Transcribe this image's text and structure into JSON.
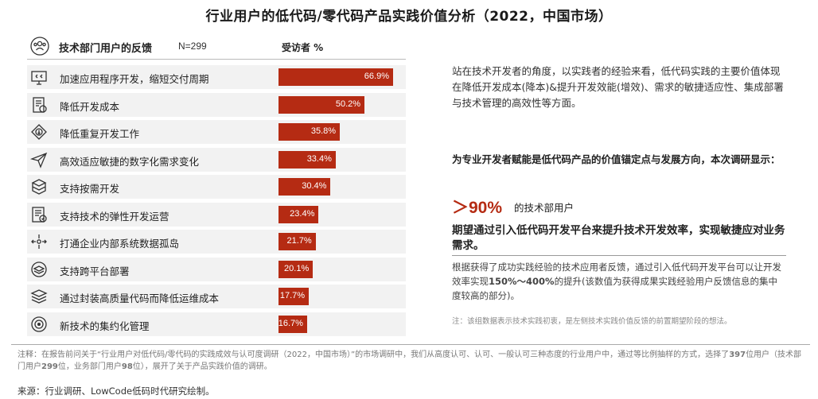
{
  "title": "行业用户的低代码/零代码产品实践价值分析（2022，中国市场）",
  "panel": {
    "header_title": "技术部门用户的反馈",
    "header_n": "N=299",
    "column_label": "受访者 %",
    "bar_color": "#b52b13"
  },
  "chart_data": {
    "type": "bar",
    "orientation": "horizontal",
    "categories": [
      "加速应用程序开发，缩短交付周期",
      "降低开发成本",
      "降低重复开发工作",
      "高效适应敏捷的数字化需求变化",
      "支持按需开发",
      "支持技术的弹性开发运营",
      "打通企业内部系统数据孤岛",
      "支持跨平台部署",
      "通过封装高质量代码而降低运维成本",
      "新技术的集约化管理"
    ],
    "values": [
      66.9,
      50.2,
      35.8,
      33.4,
      30.4,
      23.4,
      21.7,
      20.1,
      17.7,
      16.7
    ],
    "value_labels": [
      "66.9%",
      "50.2%",
      "35.8%",
      "33.4%",
      "30.4%",
      "23.4%",
      "21.7%",
      "20.1%",
      "17.7%",
      "16.7%"
    ],
    "icons": [
      "monitor-code-icon",
      "document-cost-icon",
      "recycle-down-icon",
      "paper-plane-icon",
      "cube-stack-icon",
      "checklist-icon",
      "network-arrows-icon",
      "layers-platform-icon",
      "stack-layers-icon",
      "target-icon"
    ],
    "xlim": [
      0,
      66.9
    ]
  },
  "right": {
    "p1": "站在技术开发者的角度，以实践者的经验来看，低代码实践的主要价值体现在降低开发成本(降本)&提升开发效能(增效)、需求的敏捷适应性、集成部署与技术管理的高效性等方面。",
    "p2": "为专业开发者赋能是低代码产品的价值锚定点与发展方向，本次调研显示：",
    "big_number": "＞90%",
    "big_caption": "的技术部用户",
    "p3": "期望通过引入低代码开发平台来提升技术开发效率，实现敏捷应对业务需求。",
    "p4_a": "根据获得了成功实践经验的技术应用者反馈，通过引入低代码开发平台可以让开发效率实现",
    "p4_b": "150%〜400%",
    "p4_c": "的提升(该数值为获得成果实践经验用户反馈信息的集中度较高的部分)。",
    "p5": "注：该组数据表示技术实践初衷，是左侧技术实践价值反馈的前置期望阶段的想法。"
  },
  "footer": {
    "note_a": "注释：在报告前问关于“行业用户对低代码/零代码的实践成效与认可度调研（2022，中国市场）”的市场调研中，我们从高度认可、认可、一般认可三种态度的行业用户中，通过等比例抽样的方式，选择了",
    "note_b": "397",
    "note_c": "位用户（技术部门用户",
    "note_d": "299",
    "note_e": "位，业务部门用户",
    "note_f": "98",
    "note_g": "位），展开了关于产品实践价值的调研。",
    "source": "来源：行业调研、LowCode低码时代研究绘制。"
  }
}
